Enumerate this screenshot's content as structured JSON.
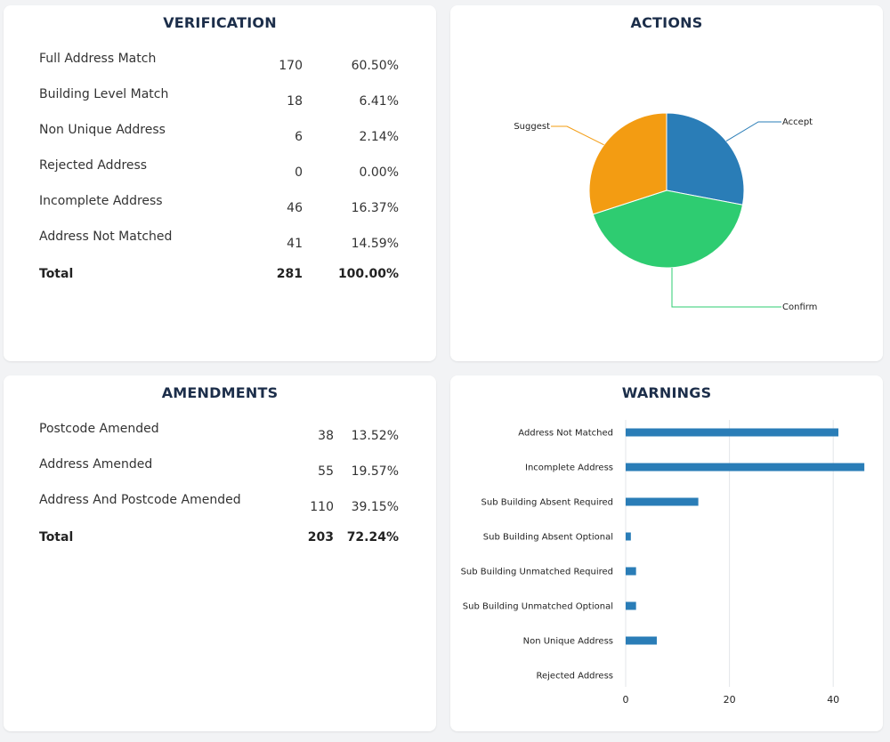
{
  "verification": {
    "title": "VERIFICATION",
    "rows": [
      {
        "label": "Full Address Match",
        "count": "170",
        "pct": "60.50%"
      },
      {
        "label": "Building Level Match",
        "count": "18",
        "pct": "6.41%"
      },
      {
        "label": "Non Unique Address",
        "count": "6",
        "pct": "2.14%"
      },
      {
        "label": "Rejected Address",
        "count": "0",
        "pct": "0.00%"
      },
      {
        "label": "Incomplete Address",
        "count": "46",
        "pct": "16.37%"
      },
      {
        "label": "Address Not Matched",
        "count": "41",
        "pct": "14.59%"
      }
    ],
    "total": {
      "label": "Total",
      "count": "281",
      "pct": "100.00%"
    }
  },
  "amendments": {
    "title": "AMENDMENTS",
    "rows": [
      {
        "label": "Postcode Amended",
        "count": "38",
        "pct": "13.52%"
      },
      {
        "label": "Address Amended",
        "count": "55",
        "pct": "19.57%"
      },
      {
        "label": "Address And Postcode Amended",
        "count": "110",
        "pct": "39.15%"
      }
    ],
    "total": {
      "label": "Total",
      "count": "203",
      "pct": "72.24%"
    }
  },
  "actions": {
    "title": "ACTIONS"
  },
  "warnings": {
    "title": "WARNINGS"
  },
  "chart_data": [
    {
      "type": "pie",
      "labels": [
        "Accept",
        "Confirm",
        "Suggest"
      ],
      "values": [
        28,
        42,
        30
      ],
      "colors": [
        "#2a7db7",
        "#2ecc71",
        "#f39c12"
      ]
    },
    {
      "type": "bar",
      "orientation": "horizontal",
      "categories": [
        "Address Not Matched",
        "Incomplete Address",
        "Sub Building Absent Required",
        "Sub Building Absent Optional",
        "Sub Building Unmatched Required",
        "Sub Building Unmatched Optional",
        "Non Unique Address",
        "Rejected Address"
      ],
      "values": [
        41,
        46,
        14,
        1,
        2,
        2,
        6,
        0
      ],
      "xticks": [
        "0",
        "20",
        "40"
      ],
      "xlim": [
        0,
        47
      ],
      "grid": true,
      "color": "#2a7db7"
    }
  ]
}
